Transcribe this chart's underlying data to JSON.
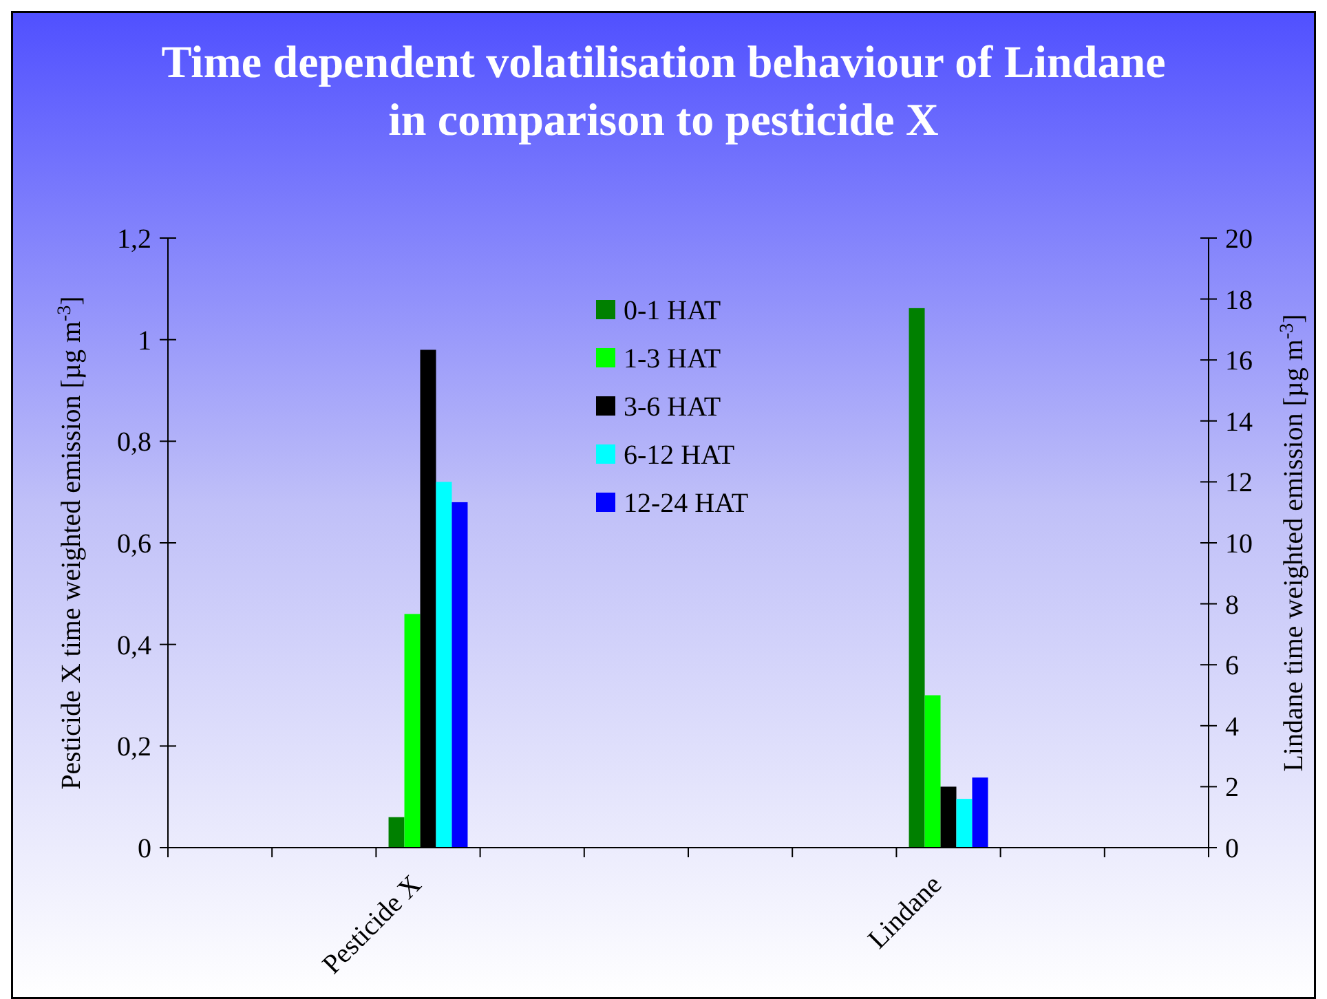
{
  "chart_data": {
    "type": "bar",
    "title": "Time dependent volatilisation behaviour of Lindane in comparison to pesticide X",
    "categories": [
      null,
      null,
      "Pesticide X",
      null,
      null,
      null,
      null,
      "Lindane",
      null,
      null
    ],
    "ylabel": "Pesticide X time weighted emission [µg m$^{-3}$]",
    "y2label": "Lindane time weighted emission [µg m$^{-3}$]",
    "ylim": [
      0,
      1.2
    ],
    "yticks": [
      0,
      {
        "value": 0.2,
        "label": "0,2"
      },
      {
        "value": 0.4,
        "label": "0,4"
      },
      {
        "value": 0.6,
        "label": "0,6"
      },
      {
        "value": 0.8,
        "label": "0,8"
      },
      1,
      {
        "value": 1.2,
        "label": "1,2"
      }
    ],
    "y2lim": [
      0,
      20
    ],
    "y2ticks": [
      0,
      2,
      4,
      6,
      8,
      10,
      12,
      14,
      16,
      18,
      20
    ],
    "legend": "top",
    "grid": false,
    "series": [
      {
        "name": "0-1 HAT",
        "color": "#008000",
        "values": [
          null,
          null,
          0.06,
          null,
          null,
          null,
          null,
          null,
          null,
          null
        ]
      },
      {
        "name": "1-3 HAT",
        "color": "#00ff00",
        "values": [
          null,
          null,
          0.46,
          null,
          null,
          null,
          null,
          null,
          null,
          null
        ]
      },
      {
        "name": "3-6 HAT",
        "color": "#000000",
        "values": [
          null,
          null,
          0.98,
          null,
          null,
          null,
          null,
          null,
          null,
          null
        ]
      },
      {
        "name": "6-12 HAT",
        "color": "#00ffff",
        "values": [
          null,
          null,
          0.72,
          null,
          null,
          null,
          null,
          null,
          null,
          null
        ]
      },
      {
        "name": "12-24 HAT",
        "color": "#0000ff",
        "values": [
          null,
          null,
          0.68,
          null,
          null,
          null,
          null,
          null,
          null,
          null
        ]
      },
      {
        "color": "#008000",
        "axis": "y2",
        "values": [
          null,
          null,
          null,
          null,
          null,
          null,
          null,
          17.7,
          null,
          null
        ]
      },
      {
        "color": "#00ff00",
        "axis": "y2",
        "values": [
          null,
          null,
          null,
          null,
          null,
          null,
          null,
          5.0,
          null,
          null
        ]
      },
      {
        "color": "#000000",
        "axis": "y2",
        "values": [
          null,
          null,
          null,
          null,
          null,
          null,
          null,
          2.0,
          null,
          null
        ]
      },
      {
        "color": "#00ffff",
        "axis": "y2",
        "values": [
          null,
          null,
          null,
          null,
          null,
          null,
          null,
          1.6,
          null,
          null
        ]
      },
      {
        "color": "#0000ff",
        "axis": "y2",
        "values": [
          null,
          null,
          null,
          null,
          null,
          null,
          null,
          2.3,
          null,
          null
        ]
      }
    ]
  }
}
